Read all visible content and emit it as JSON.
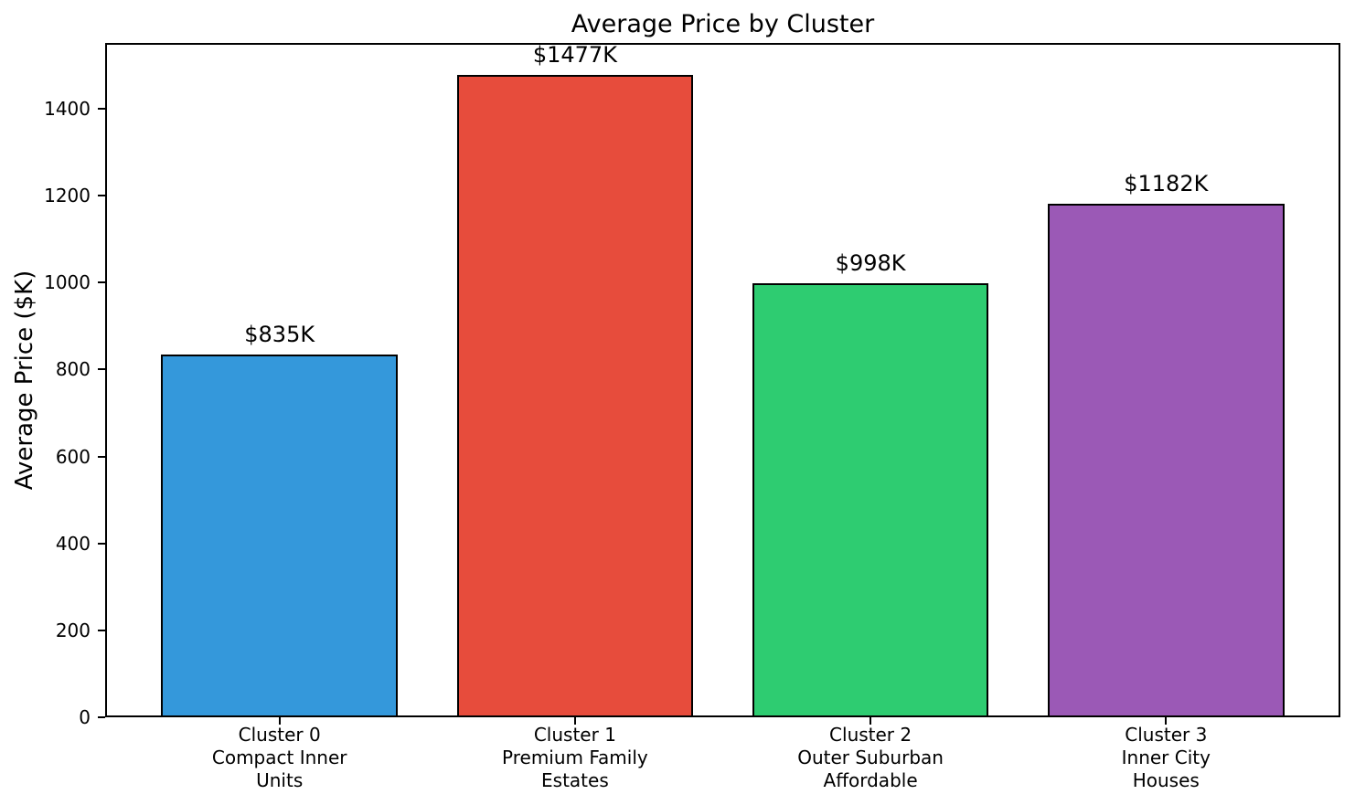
{
  "chart_data": {
    "type": "bar",
    "title": "Average Price by Cluster",
    "xlabel": "",
    "ylabel": "Average Price ($K)",
    "ylim": [
      0,
      1551
    ],
    "yticks": [
      0,
      200,
      400,
      600,
      800,
      1000,
      1200,
      1400
    ],
    "grid": false,
    "legend": null,
    "categories": [
      "Cluster 0\nCompact Inner\nUnits",
      "Cluster 1\nPremium Family\nEstates",
      "Cluster 2\nOuter Suburban\nAffordable",
      "Cluster 3\nInner City\nHouses"
    ],
    "values": [
      835,
      1477,
      998,
      1182
    ],
    "value_labels": [
      "$835K",
      "$1477K",
      "$998K",
      "$1182K"
    ],
    "bar_colors": [
      "#3498db",
      "#e74c3c",
      "#2ecc71",
      "#9b59b6"
    ],
    "bar_edge_color": "#000000",
    "axis_color": "#000000",
    "background_color": "#ffffff"
  }
}
